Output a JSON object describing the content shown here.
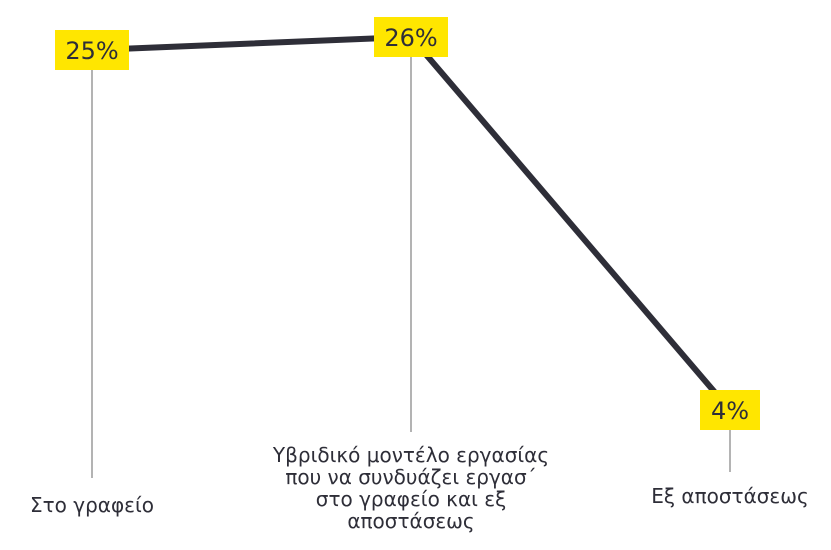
{
  "chart_data": {
    "type": "line",
    "categories": [
      "Στο γραφείο",
      "Υβριδικό μοντέλο εργασίας που να συνδυάζει εργασ´ στο γραφείο και εξ αποστάσεως",
      "Εξ αποστάσεως"
    ],
    "category_label_lines": [
      [
        "Στο γραφείο"
      ],
      [
        "Υβριδικό μοντέλο εργασίας",
        "που να συνδυάζει εργασ´",
        "στο γραφείο και εξ",
        "αποστάσεως"
      ],
      [
        "Εξ αποστάσεως"
      ]
    ],
    "values": [
      25,
      26,
      4
    ],
    "value_labels": [
      "25%",
      "26%",
      "4%"
    ],
    "unit": "%",
    "ylim": [
      0,
      27
    ],
    "grid": false,
    "colors": {
      "line": "#2e2e38",
      "label_bg": "#ffe600",
      "label_text": "#2e2e38",
      "drop_line": "#9a9a9a"
    }
  }
}
